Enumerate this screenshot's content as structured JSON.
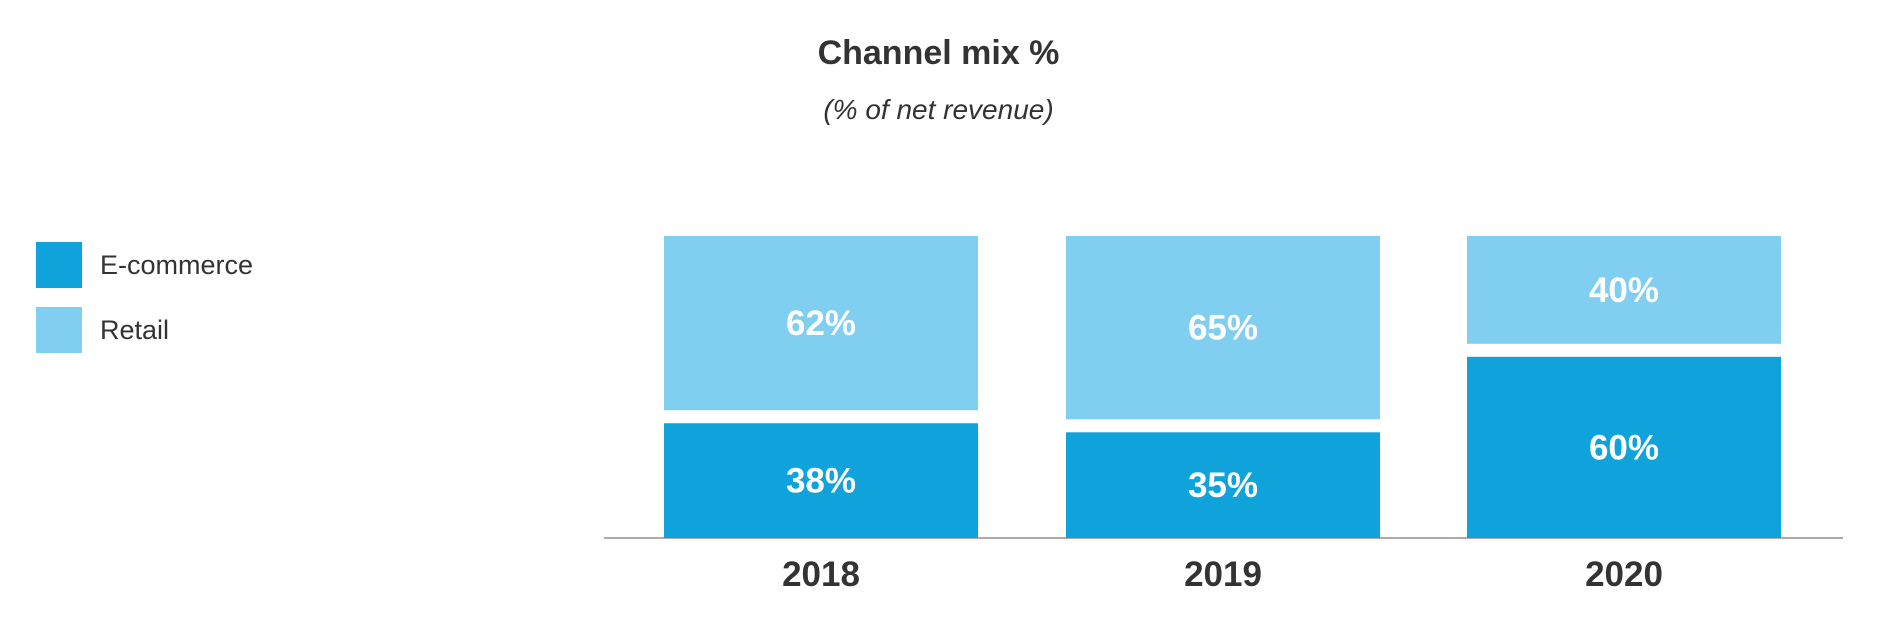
{
  "chart_data": {
    "type": "bar",
    "stacked": true,
    "title": "Channel mix %",
    "subtitle": "(% of net revenue)",
    "categories": [
      "2018",
      "2019",
      "2020"
    ],
    "series": [
      {
        "name": "E-commerce",
        "values": [
          38,
          35,
          60
        ],
        "labels": [
          "38%",
          "35%",
          "60%"
        ],
        "color": "#10a3db"
      },
      {
        "name": "Retail",
        "values": [
          62,
          65,
          40
        ],
        "labels": [
          "62%",
          "65%",
          "40%"
        ],
        "color": "#80cff0"
      }
    ],
    "ylim": [
      0,
      100
    ],
    "grid": false,
    "legend_position": "left",
    "axis_color": "#b3a9a9"
  }
}
